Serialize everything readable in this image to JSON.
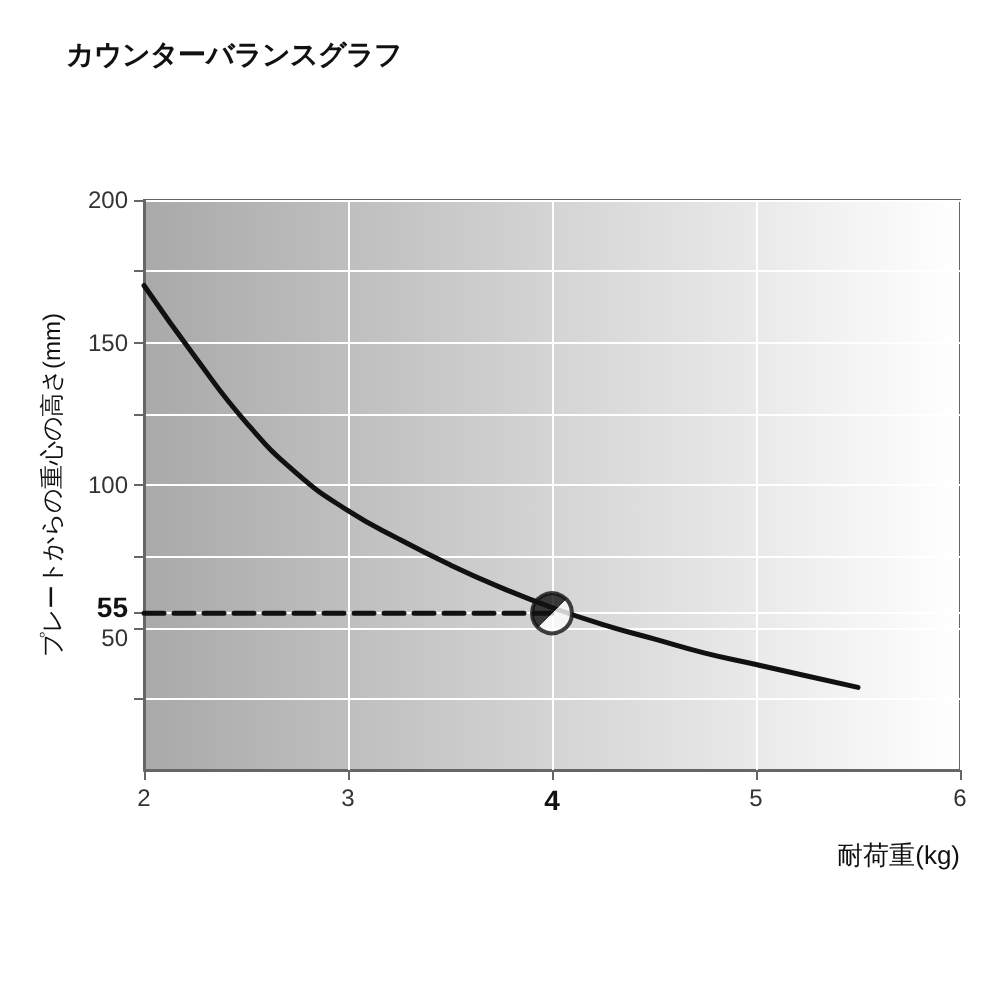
{
  "chart_data": {
    "type": "line",
    "title": "カウンターバランスグラフ",
    "xlabel": "耐荷重(kg)",
    "ylabel": "プレートからの重心の高さ(mm)",
    "xlim": [
      2,
      6
    ],
    "xticks": [
      2,
      3,
      4,
      5,
      6
    ],
    "ylim": [
      0,
      200
    ],
    "yticks": [
      {
        "value": 25,
        "label": null
      },
      50,
      55,
      {
        "value": 75,
        "label": null
      },
      100,
      {
        "value": 125,
        "label": null
      },
      150,
      {
        "value": 175,
        "label": null
      },
      200
    ],
    "grid": true,
    "series": [
      {
        "color": "#111111",
        "marker": "none",
        "line_style": "solid",
        "x": [
          2,
          2.25,
          2.5,
          2.75,
          3,
          3.25,
          3.5,
          3.75,
          4,
          4.25,
          4.5,
          4.75,
          5,
          5.25,
          5.5
        ],
        "values": [
          170,
          145,
          122,
          104,
          91,
          81,
          72,
          64,
          57,
          51,
          46,
          41,
          37,
          33,
          29
        ]
      },
      {
        "color": "#111111",
        "marker": "none",
        "line_style": "dashed",
        "x": [
          2,
          4
        ],
        "values": [
          55,
          55
        ]
      },
      {
        "type": "scatter",
        "color": "#111111",
        "marker": "circle",
        "x": [
          4
        ],
        "values": [
          55
        ]
      }
    ]
  }
}
